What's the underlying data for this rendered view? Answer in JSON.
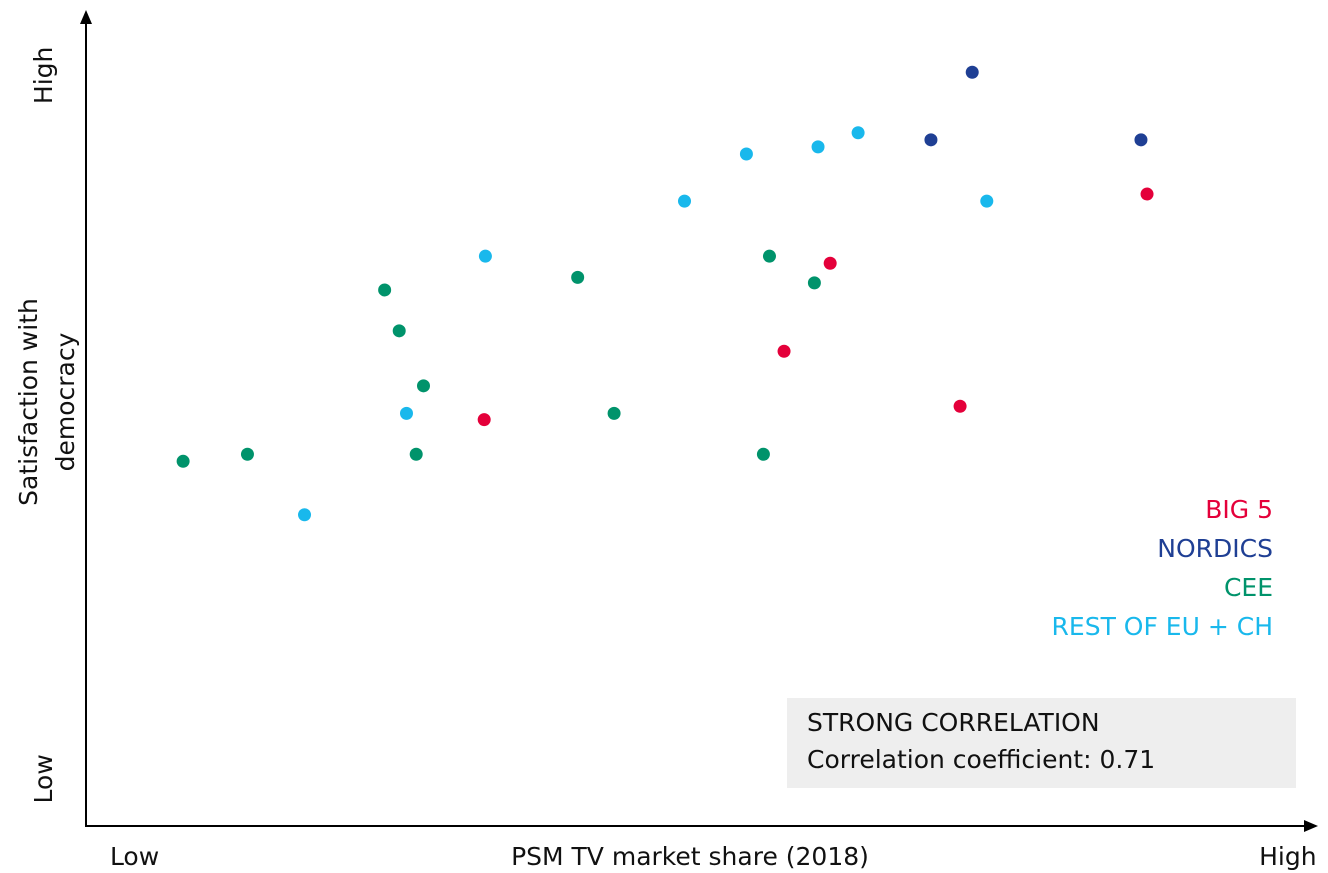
{
  "chart_data": {
    "type": "scatter",
    "xlabel": "PSM TV market share (2018)",
    "ylabel": "Satisfaction with democracy",
    "xlim": [
      0,
      100
    ],
    "ylim": [
      0,
      100
    ],
    "xticks": [
      {
        "value": 4,
        "label": "Low"
      },
      {
        "value": 99,
        "label": "High"
      }
    ],
    "yticks": [
      {
        "value": 6,
        "label": "Low"
      },
      {
        "value": 95.5,
        "label": "High"
      }
    ],
    "grid": false,
    "legend": "right",
    "series": [
      {
        "name": "BIG 5",
        "color": "#e4003a",
        "x": [
          87.4,
          61.3,
          57.5,
          72.0,
          32.8
        ],
        "values": [
          80.4,
          71.6,
          60.4,
          53.4,
          51.7
        ]
      },
      {
        "name": "NORDICS",
        "color": "#1f3f94",
        "x": [
          73.0,
          69.6,
          86.9
        ],
        "values": [
          95.9,
          87.3,
          87.3
        ]
      },
      {
        "name": "CEE",
        "color": "#00936b",
        "x": [
          8.0,
          13.3,
          24.6,
          25.8,
          27.8,
          27.2,
          40.5,
          43.5,
          56.3,
          60.0,
          55.8
        ],
        "values": [
          46.4,
          47.3,
          68.2,
          63.0,
          56.0,
          47.3,
          69.8,
          52.5,
          72.5,
          69.1,
          47.3
        ]
      },
      {
        "name": "REST OF EU + CH",
        "color": "#19b8ec",
        "x": [
          18.0,
          26.4,
          32.9,
          49.3,
          54.4,
          60.3,
          63.6,
          74.2
        ],
        "values": [
          39.6,
          52.5,
          72.5,
          79.5,
          85.5,
          86.4,
          88.2,
          79.5
        ]
      }
    ],
    "annotation": {
      "title": "STRONG CORRELATION",
      "text": "Correlation coefficient: 0.71"
    }
  }
}
